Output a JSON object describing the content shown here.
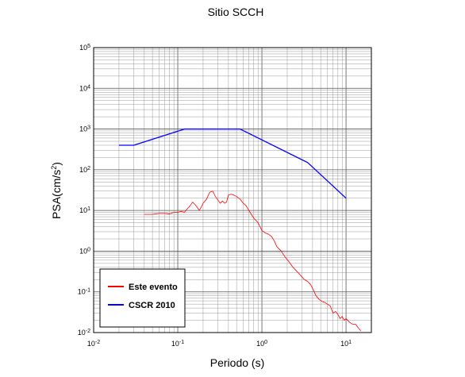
{
  "chart_data": {
    "type": "line",
    "title": "Sitio SCCH",
    "xlabel": "Periodo (s)",
    "ylabel_base": "PSA(cm/s",
    "ylabel_sup": "2",
    "ylabel_end": ")",
    "xscale": "log",
    "yscale": "log",
    "xlim": [
      0.01,
      20
    ],
    "ylim": [
      0.01,
      100000
    ],
    "grid": true,
    "legend_position": "bottom-left",
    "x_ticks": [
      {
        "base": "10",
        "exp": "-2"
      },
      {
        "base": "10",
        "exp": "-1"
      },
      {
        "base": "10",
        "exp": "0"
      },
      {
        "base": "10",
        "exp": "1"
      }
    ],
    "y_ticks": [
      {
        "base": "10",
        "exp": "-2"
      },
      {
        "base": "10",
        "exp": "-1"
      },
      {
        "base": "10",
        "exp": "0"
      },
      {
        "base": "10",
        "exp": "1"
      },
      {
        "base": "10",
        "exp": "2"
      },
      {
        "base": "10",
        "exp": "3"
      },
      {
        "base": "10",
        "exp": "4"
      },
      {
        "base": "10",
        "exp": "5"
      }
    ],
    "series": [
      {
        "name": "Este evento",
        "color": "#ff0000",
        "points": [
          [
            0.04,
            8
          ],
          [
            0.05,
            8
          ],
          [
            0.06,
            8.5
          ],
          [
            0.07,
            8.5
          ],
          [
            0.08,
            8.2
          ],
          [
            0.09,
            9
          ],
          [
            0.1,
            9
          ],
          [
            0.11,
            9.5
          ],
          [
            0.12,
            9
          ],
          [
            0.13,
            11
          ],
          [
            0.14,
            13
          ],
          [
            0.15,
            16
          ],
          [
            0.16,
            14
          ],
          [
            0.17,
            12
          ],
          [
            0.18,
            10
          ],
          [
            0.19,
            12
          ],
          [
            0.2,
            15
          ],
          [
            0.22,
            19
          ],
          [
            0.24,
            28
          ],
          [
            0.26,
            30
          ],
          [
            0.28,
            22
          ],
          [
            0.3,
            18
          ],
          [
            0.32,
            15
          ],
          [
            0.34,
            17
          ],
          [
            0.36,
            15
          ],
          [
            0.38,
            16
          ],
          [
            0.4,
            24
          ],
          [
            0.43,
            25
          ],
          [
            0.46,
            24
          ],
          [
            0.5,
            22
          ],
          [
            0.55,
            19
          ],
          [
            0.6,
            15
          ],
          [
            0.65,
            13
          ],
          [
            0.7,
            10
          ],
          [
            0.75,
            8
          ],
          [
            0.8,
            6.5
          ],
          [
            0.9,
            5
          ],
          [
            1.0,
            3.2
          ],
          [
            1.1,
            2.8
          ],
          [
            1.2,
            2.6
          ],
          [
            1.3,
            2.3
          ],
          [
            1.4,
            1.8
          ],
          [
            1.5,
            1.3
          ],
          [
            1.7,
            1.0
          ],
          [
            1.9,
            0.7
          ],
          [
            2.1,
            0.55
          ],
          [
            2.3,
            0.42
          ],
          [
            2.6,
            0.32
          ],
          [
            2.9,
            0.25
          ],
          [
            3.2,
            0.2
          ],
          [
            3.5,
            0.18
          ],
          [
            3.8,
            0.15
          ],
          [
            4.1,
            0.11
          ],
          [
            4.4,
            0.08
          ],
          [
            4.8,
            0.065
          ],
          [
            5.2,
            0.058
          ],
          [
            5.6,
            0.055
          ],
          [
            6.0,
            0.05
          ],
          [
            6.5,
            0.045
          ],
          [
            7.0,
            0.03
          ],
          [
            7.5,
            0.033
          ],
          [
            8.0,
            0.028
          ],
          [
            8.5,
            0.022
          ],
          [
            9.0,
            0.025
          ],
          [
            9.5,
            0.02
          ],
          [
            10.0,
            0.022
          ],
          [
            11.0,
            0.018
          ],
          [
            12.0,
            0.016
          ],
          [
            13.0,
            0.016
          ],
          [
            14.0,
            0.013
          ],
          [
            15.0,
            0.011
          ]
        ]
      },
      {
        "name": "CSCR 2010",
        "color": "#0000ff",
        "points": [
          [
            0.02,
            400
          ],
          [
            0.03,
            400
          ],
          [
            0.12,
            1000
          ],
          [
            0.55,
            1000
          ],
          [
            3.5,
            150
          ],
          [
            10,
            20
          ]
        ]
      }
    ]
  }
}
